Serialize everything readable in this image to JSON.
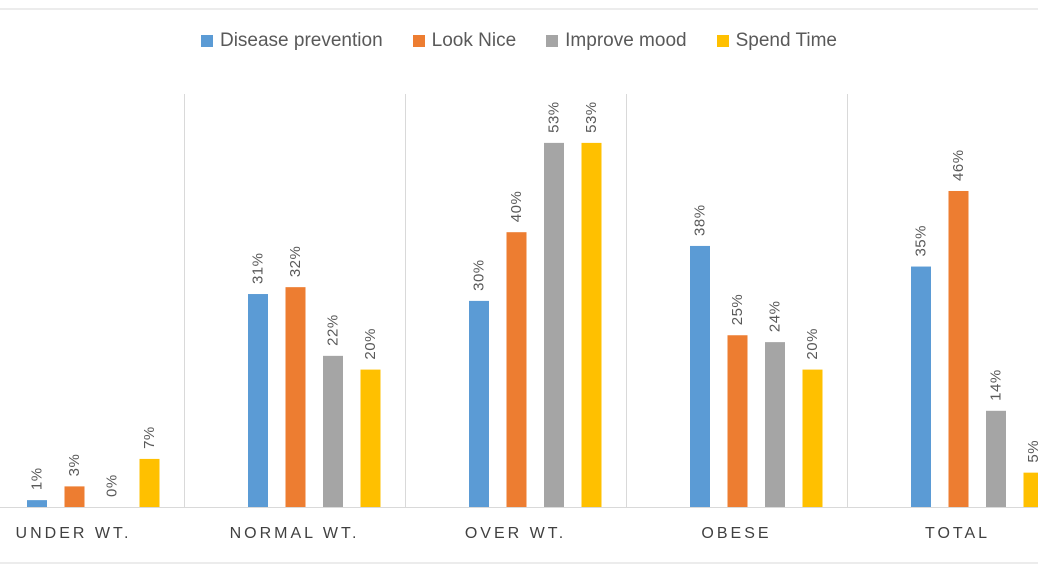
{
  "chart_data": {
    "type": "bar",
    "categories": [
      "UNDER WT.",
      "NORMAL WT.",
      "OVER WT.",
      "OBESE",
      "TOTAL"
    ],
    "series": [
      {
        "name": "Disease prevention",
        "color": "#5B9BD5",
        "values": [
          1,
          31,
          30,
          38,
          35
        ],
        "labels": [
          "1%",
          "31%",
          "30%",
          "38%",
          "35%"
        ]
      },
      {
        "name": "Look Nice",
        "color": "#ED7D31",
        "values": [
          3,
          32,
          40,
          25,
          46
        ],
        "labels": [
          "3%",
          "32%",
          "40%",
          "25%",
          "46%"
        ]
      },
      {
        "name": "Improve mood",
        "color": "#A5A5A5",
        "values": [
          0,
          22,
          53,
          24,
          14
        ],
        "labels": [
          "0%",
          "22%",
          "53%",
          "24%",
          "14%"
        ]
      },
      {
        "name": "Spend Time",
        "color": "#FFC000",
        "values": [
          7,
          20,
          53,
          20,
          5
        ],
        "labels": [
          "7%",
          "20%",
          "53%",
          "20%",
          "5%"
        ]
      }
    ],
    "ylim": [
      0,
      55
    ],
    "legend": "top",
    "grid": "vertical category separators"
  }
}
